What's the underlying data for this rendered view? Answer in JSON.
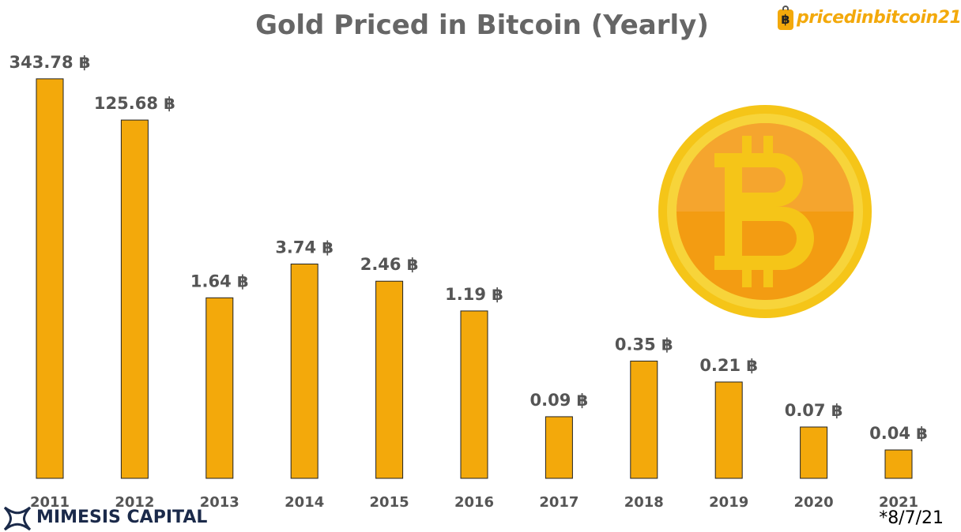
{
  "header": {
    "title": "Gold Priced in Bitcoin (Yearly)"
  },
  "brand": {
    "text": "pricedinbitcoin21",
    "icon": "bitcoin-tag-icon",
    "color": "#f3a90b"
  },
  "footer": {
    "company": "MIMESIS CAPITAL",
    "logo_icon": "mimesis-x-logo-icon",
    "date_note": "*8/7/21"
  },
  "decoration": {
    "icon": "bitcoin-coin-icon",
    "colors": {
      "ring": "#f5c518",
      "face": "#f39c12"
    }
  },
  "chart_data": {
    "type": "bar",
    "title": "Gold Priced in Bitcoin (Yearly)",
    "categories": [
      "2011",
      "2012",
      "2013",
      "2014",
      "2015",
      "2016",
      "2017",
      "2018",
      "2019",
      "2020",
      "2021"
    ],
    "values": [
      343.78,
      125.68,
      1.64,
      3.74,
      2.46,
      1.19,
      0.09,
      0.35,
      0.21,
      0.07,
      0.04
    ],
    "data_labels": [
      "343.78 ฿",
      "125.68 ฿",
      "1.64 ฿",
      "3.74 ฿",
      "2.46 ฿",
      "1.19 ฿",
      "0.09 ฿",
      "0.35 ฿",
      "0.21 ฿",
      "0.07 ฿",
      "0.04 ฿"
    ],
    "yscale": "log",
    "ylim": [
      0.02,
      400
    ],
    "xlabel": "",
    "ylabel": "",
    "grid": false,
    "bar_color": "#f3a90b",
    "label_color": "#555555"
  }
}
